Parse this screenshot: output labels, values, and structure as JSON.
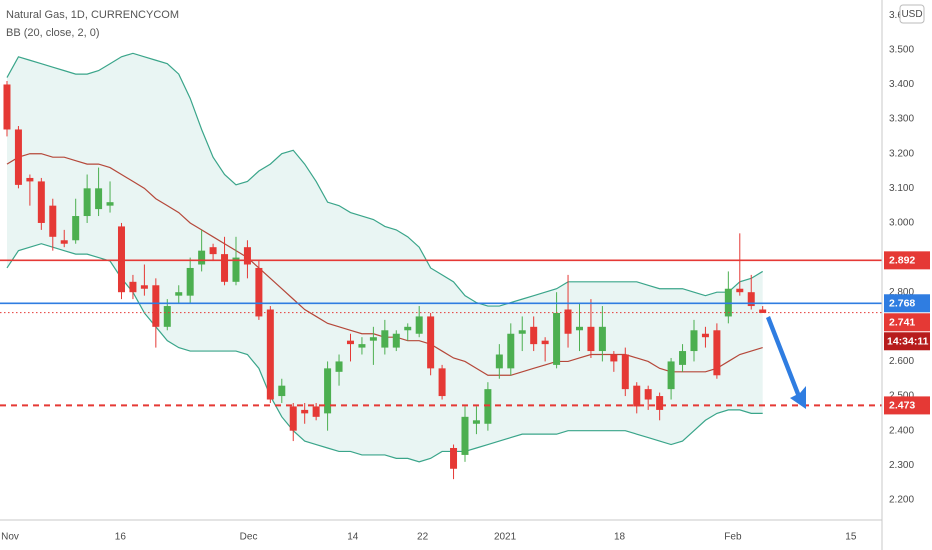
{
  "chart_data": {
    "type": "candlestick",
    "title": "Natural Gas, 1D, CURRENCYCOM",
    "indicator": "BB (20, close, 2, 0)",
    "currency_button": "USD",
    "countdown": "14:34:11",
    "up_color": "#4caf50",
    "down_color": "#e53935",
    "grid": false,
    "xlim": [
      -0.61,
      76.42
    ],
    "xticks": [
      {
        "value": 0,
        "label": "Nov"
      },
      {
        "value": 9.9,
        "label": "16"
      },
      {
        "value": 21.1,
        "label": "Dec"
      },
      {
        "value": 30.2,
        "label": "14"
      },
      {
        "value": 36.3,
        "label": "22"
      },
      {
        "value": 43.5,
        "label": "2021"
      },
      {
        "value": 53.5,
        "label": "18"
      },
      {
        "value": 63.4,
        "label": "Feb"
      },
      {
        "value": 73.7,
        "label": "15"
      }
    ],
    "ylim": [
      2.142,
      3.644
    ],
    "yticks": [
      {
        "value": 2.2,
        "label": "2.200"
      },
      {
        "value": 2.3,
        "label": "2.300"
      },
      {
        "value": 2.4,
        "label": "2.400"
      },
      {
        "value": 2.5,
        "label": "2.500"
      },
      {
        "value": 2.6,
        "label": "2.600"
      },
      {
        "value": 2.7,
        "label": "2.700"
      },
      {
        "value": 2.8,
        "label": "2.800"
      },
      {
        "value": 2.9,
        "label": "2.900"
      },
      {
        "value": 3.0,
        "label": "3.000"
      },
      {
        "value": 3.1,
        "label": "3.100"
      },
      {
        "value": 3.2,
        "label": "3.200"
      },
      {
        "value": 3.3,
        "label": "3.300"
      },
      {
        "value": 3.4,
        "label": "3.400"
      },
      {
        "value": 3.5,
        "label": "3.500"
      },
      {
        "value": 3.6,
        "label": "3.600"
      }
    ],
    "open": [
      3.4,
      3.27,
      3.13,
      3.12,
      3.05,
      2.95,
      2.95,
      3.02,
      3.04,
      3.05,
      2.99,
      2.83,
      2.82,
      2.82,
      2.7,
      2.79,
      2.79,
      2.88,
      2.93,
      2.91,
      2.83,
      2.93,
      2.87,
      2.75,
      2.5,
      2.47,
      2.46,
      2.47,
      2.45,
      2.57,
      2.66,
      2.64,
      2.66,
      2.64,
      2.64,
      2.69,
      2.68,
      2.73,
      2.58,
      2.35,
      2.33,
      2.42,
      2.42,
      2.58,
      2.58,
      2.68,
      2.7,
      2.66,
      2.59,
      2.75,
      2.69,
      2.7,
      2.63,
      2.62,
      2.62,
      2.53,
      2.52,
      2.5,
      2.52,
      2.59,
      2.63,
      2.68,
      2.69,
      2.73,
      2.81,
      2.8,
      2.75
    ],
    "high": [
      3.41,
      3.28,
      3.14,
      3.13,
      3.07,
      2.98,
      3.07,
      3.14,
      3.16,
      3.12,
      3.0,
      2.85,
      2.88,
      2.84,
      2.78,
      2.82,
      2.9,
      2.98,
      2.94,
      2.96,
      2.96,
      2.95,
      2.89,
      2.76,
      2.55,
      2.48,
      2.48,
      2.48,
      2.6,
      2.62,
      2.68,
      2.67,
      2.7,
      2.72,
      2.69,
      2.71,
      2.76,
      2.74,
      2.59,
      2.36,
      2.47,
      2.47,
      2.54,
      2.65,
      2.71,
      2.73,
      2.73,
      2.67,
      2.8,
      2.85,
      2.77,
      2.78,
      2.76,
      2.63,
      2.64,
      2.54,
      2.53,
      2.51,
      2.61,
      2.65,
      2.72,
      2.7,
      2.71,
      2.86,
      2.97,
      2.85,
      2.76
    ],
    "low": [
      3.25,
      3.1,
      3.05,
      2.98,
      2.92,
      2.93,
      2.94,
      3.0,
      3.02,
      3.03,
      2.78,
      2.78,
      2.79,
      2.64,
      2.69,
      2.77,
      2.77,
      2.86,
      2.89,
      2.82,
      2.82,
      2.84,
      2.72,
      2.48,
      2.48,
      2.37,
      2.42,
      2.43,
      2.4,
      2.53,
      2.6,
      2.62,
      2.59,
      2.62,
      2.63,
      2.66,
      2.67,
      2.56,
      2.49,
      2.26,
      2.31,
      2.39,
      2.4,
      2.55,
      2.56,
      2.63,
      2.63,
      2.6,
      2.58,
      2.64,
      2.63,
      2.61,
      2.6,
      2.57,
      2.5,
      2.45,
      2.46,
      2.43,
      2.49,
      2.57,
      2.6,
      2.64,
      2.55,
      2.71,
      2.79,
      2.75,
      2.74
    ],
    "close": [
      3.27,
      3.11,
      3.12,
      3.0,
      2.96,
      2.94,
      3.02,
      3.1,
      3.1,
      3.06,
      2.8,
      2.8,
      2.81,
      2.7,
      2.76,
      2.8,
      2.87,
      2.92,
      2.91,
      2.83,
      2.9,
      2.88,
      2.73,
      2.49,
      2.53,
      2.4,
      2.45,
      2.44,
      2.58,
      2.6,
      2.65,
      2.65,
      2.67,
      2.69,
      2.68,
      2.7,
      2.73,
      2.58,
      2.5,
      2.29,
      2.44,
      2.43,
      2.52,
      2.62,
      2.68,
      2.69,
      2.65,
      2.65,
      2.74,
      2.68,
      2.7,
      2.63,
      2.7,
      2.6,
      2.52,
      2.47,
      2.49,
      2.46,
      2.6,
      2.63,
      2.69,
      2.67,
      2.56,
      2.81,
      2.8,
      2.76,
      2.74
    ],
    "bands": [
      {
        "color": "#3aa58a",
        "values": [
          3.42,
          3.48,
          3.47,
          3.46,
          3.45,
          3.44,
          3.43,
          3.43,
          3.44,
          3.46,
          3.48,
          3.49,
          3.48,
          3.47,
          3.46,
          3.43,
          3.36,
          3.27,
          3.19,
          3.14,
          3.11,
          3.12,
          3.15,
          3.17,
          3.2,
          3.21,
          3.17,
          3.12,
          3.06,
          3.05,
          3.03,
          3.02,
          3.01,
          2.99,
          2.98,
          2.96,
          2.93,
          2.87,
          2.85,
          2.83,
          2.79,
          2.77,
          2.76,
          2.76,
          2.77,
          2.78,
          2.79,
          2.8,
          2.81,
          2.83,
          2.83,
          2.83,
          2.83,
          2.83,
          2.83,
          2.83,
          2.82,
          2.81,
          2.81,
          2.81,
          2.8,
          2.79,
          2.8,
          2.8,
          2.83,
          2.84,
          2.86
        ]
      },
      {
        "color": "#b5483a",
        "values": [
          3.17,
          3.19,
          3.2,
          3.2,
          3.19,
          3.19,
          3.18,
          3.17,
          3.17,
          3.16,
          3.14,
          3.12,
          3.1,
          3.07,
          3.05,
          3.03,
          3.0,
          2.98,
          2.96,
          2.94,
          2.92,
          2.9,
          2.87,
          2.84,
          2.81,
          2.78,
          2.75,
          2.73,
          2.71,
          2.7,
          2.69,
          2.68,
          2.68,
          2.67,
          2.67,
          2.66,
          2.66,
          2.65,
          2.63,
          2.61,
          2.6,
          2.58,
          2.56,
          2.56,
          2.56,
          2.57,
          2.58,
          2.59,
          2.6,
          2.6,
          2.61,
          2.62,
          2.62,
          2.62,
          2.62,
          2.61,
          2.6,
          2.58,
          2.57,
          2.57,
          2.57,
          2.57,
          2.58,
          2.6,
          2.62,
          2.63,
          2.64
        ]
      },
      {
        "color": "#3aa58a",
        "values": [
          2.87,
          2.92,
          2.93,
          2.94,
          2.93,
          2.92,
          2.91,
          2.91,
          2.9,
          2.89,
          2.84,
          2.8,
          2.74,
          2.7,
          2.66,
          2.64,
          2.63,
          2.63,
          2.63,
          2.63,
          2.63,
          2.62,
          2.58,
          2.5,
          2.44,
          2.4,
          2.37,
          2.36,
          2.35,
          2.34,
          2.34,
          2.33,
          2.33,
          2.33,
          2.32,
          2.32,
          2.31,
          2.32,
          2.34,
          2.34,
          2.34,
          2.35,
          2.36,
          2.37,
          2.38,
          2.39,
          2.39,
          2.39,
          2.39,
          2.4,
          2.4,
          2.4,
          2.4,
          2.4,
          2.4,
          2.39,
          2.38,
          2.37,
          2.36,
          2.37,
          2.4,
          2.43,
          2.45,
          2.46,
          2.46,
          2.45,
          2.45
        ]
      }
    ],
    "band_fill": "#e9f5f3",
    "levels": [
      {
        "value": 2.892,
        "color": "#e53935",
        "style": "solid"
      },
      {
        "value": 2.768,
        "color": "#2f7de1",
        "style": "solid"
      },
      {
        "value": 2.741,
        "color": "#e53935",
        "style": "dotted"
      },
      {
        "value": 2.473,
        "color": "#e53935",
        "style": "dashed"
      }
    ]
  }
}
